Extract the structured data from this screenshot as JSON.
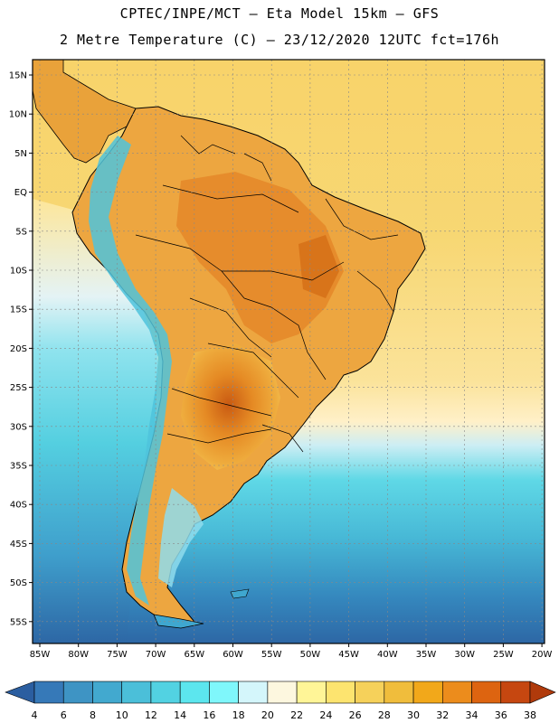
{
  "header": {
    "line1": "CPTEC/INPE/MCT –  Eta Model 15km – GFS",
    "line2": "2 Metre Temperature (C) – 23/12/2020 12UTC fct=176h"
  },
  "map": {
    "lat_ticks": [
      "15N",
      "10N",
      "5N",
      "EQ",
      "5S",
      "10S",
      "15S",
      "20S",
      "25S",
      "30S",
      "35S",
      "40S",
      "45S",
      "50S",
      "55S"
    ],
    "lon_ticks": [
      "85W",
      "80W",
      "75W",
      "70W",
      "65W",
      "60W",
      "55W",
      "50W",
      "45W",
      "40W",
      "35W",
      "30W",
      "25W",
      "20W"
    ]
  },
  "colorbar": {
    "labels": [
      "4",
      "6",
      "8",
      "10",
      "12",
      "14",
      "16",
      "18",
      "20",
      "22",
      "24",
      "26",
      "28",
      "30",
      "32",
      "34",
      "36",
      "38"
    ],
    "colors": [
      "#2b5ea0",
      "#3679b8",
      "#3e94c4",
      "#42a9cf",
      "#4bbfd9",
      "#52d2e2",
      "#5ce6ee",
      "#7ff7fb",
      "#d4f6fb",
      "#fdf7df",
      "#fff597",
      "#fde46f",
      "#f6d15a",
      "#f0bd3c",
      "#f2a81a",
      "#ec8c1c",
      "#dd6410",
      "#c64710",
      "#b03a0b"
    ]
  }
}
